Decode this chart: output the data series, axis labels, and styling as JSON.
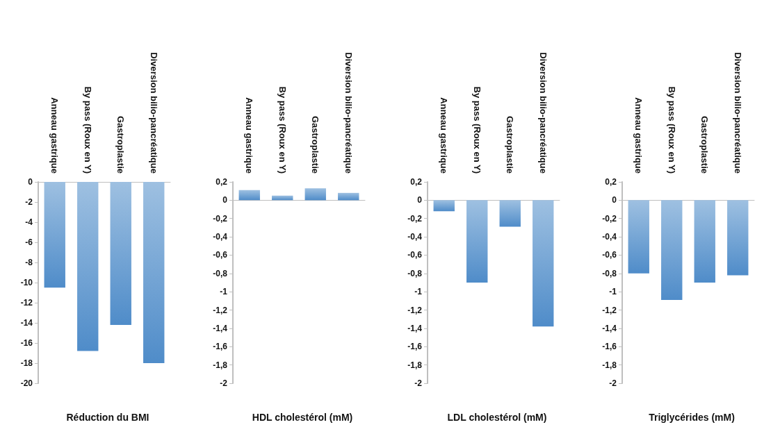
{
  "chart_data": [
    {
      "type": "bar",
      "xlabel": "Réduction du BMI",
      "categories": [
        "Anneau gastrique",
        "By pass (Roux en Y)",
        "Gastroplastie",
        "Diversion bilio-pancréatique"
      ],
      "values": [
        -10.5,
        -16.8,
        -14.2,
        -18
      ],
      "color": "#4f8cc9",
      "ylim": [
        -20,
        0
      ],
      "yticks": [
        -20,
        -18,
        -16,
        -14,
        -12,
        -10,
        -8,
        -6,
        -4,
        -2,
        0
      ]
    },
    {
      "type": "bar",
      "xlabel": "HDL cholestérol (mM)",
      "categories": [
        "Anneau gastrique",
        "By pass (Roux en Y)",
        "Gastroplastie",
        "Diversion bilio-pancréatique"
      ],
      "values": [
        0.11,
        0.05,
        0.13,
        0.08
      ],
      "color": "#4f8cc9",
      "ylim": [
        -2,
        0.2
      ],
      "yticks": [
        {
          "value": -2,
          "label": "-2"
        },
        {
          "value": -1.8,
          "label": "-1,8"
        },
        {
          "value": -1.6,
          "label": "-1,6"
        },
        {
          "value": -1.4,
          "label": "-1,4"
        },
        {
          "value": -1.2,
          "label": "-1,2"
        },
        {
          "value": -1,
          "label": "-1"
        },
        {
          "value": -0.8,
          "label": "-0,8"
        },
        {
          "value": -0.6,
          "label": "-0,6"
        },
        {
          "value": -0.4,
          "label": "-0,4"
        },
        {
          "value": -0.2,
          "label": "-0,2"
        },
        {
          "value": 0,
          "label": "0"
        },
        {
          "value": 0.2,
          "label": "0,2"
        }
      ]
    },
    {
      "type": "bar",
      "xlabel": "LDL cholestérol (mM)",
      "categories": [
        "Anneau gastrique",
        "By pass (Roux en Y)",
        "Gastroplastie",
        "Diversion bilio-pancréatique"
      ],
      "values": [
        -0.12,
        -0.9,
        -0.29,
        -1.38
      ],
      "color": "#4f8cc9",
      "ylim": [
        -2,
        0.2
      ],
      "yticks": [
        {
          "value": -2,
          "label": "-2"
        },
        {
          "value": -1.8,
          "label": "-1,8"
        },
        {
          "value": -1.6,
          "label": "-1,6"
        },
        {
          "value": -1.4,
          "label": "-1,4"
        },
        {
          "value": -1.2,
          "label": "-1,2"
        },
        {
          "value": -1,
          "label": "-1"
        },
        {
          "value": -0.8,
          "label": "-0,8"
        },
        {
          "value": -0.6,
          "label": "-0,6"
        },
        {
          "value": -0.4,
          "label": "-0,4"
        },
        {
          "value": -0.2,
          "label": "-0,2"
        },
        {
          "value": 0,
          "label": "0"
        },
        {
          "value": 0.2,
          "label": "0,2"
        }
      ]
    },
    {
      "type": "bar",
      "xlabel": "Triglycérides (mM)",
      "categories": [
        "Anneau gastrique",
        "By pass (Roux en Y)",
        "Gastroplastie",
        "Diversion bilio-pancréatique"
      ],
      "values": [
        -0.8,
        -1.09,
        -0.9,
        -0.82
      ],
      "color": "#4f8cc9",
      "ylim": [
        -2,
        0.2
      ],
      "yticks": [
        {
          "value": -2,
          "label": "-2"
        },
        {
          "value": -1.8,
          "label": "-1,8"
        },
        {
          "value": -1.6,
          "label": "-1,6"
        },
        {
          "value": -1.4,
          "label": "-1,4"
        },
        {
          "value": -1.2,
          "label": "-1,2"
        },
        {
          "value": -1,
          "label": "-1"
        },
        {
          "value": -0.8,
          "label": "-0,8"
        },
        {
          "value": -0.6,
          "label": "-0,6"
        },
        {
          "value": -0.4,
          "label": "-0,4"
        },
        {
          "value": -0.2,
          "label": "-0,2"
        },
        {
          "value": 0,
          "label": "0"
        },
        {
          "value": 0.2,
          "label": "0,2"
        }
      ]
    }
  ]
}
